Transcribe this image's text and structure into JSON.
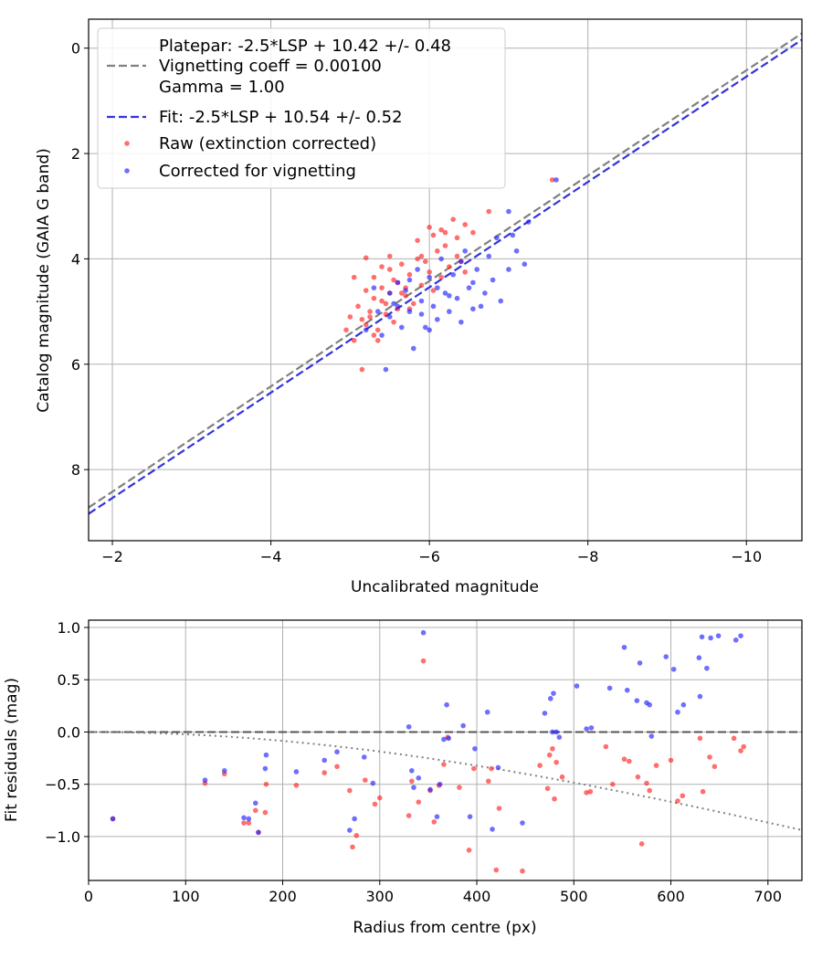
{
  "chart_data": [
    {
      "type": "scatter",
      "xlabel": "Uncalibrated magnitude",
      "ylabel": "Catalog magnitude (GAIA G band)",
      "xlim": [
        -1.7,
        -10.7
      ],
      "ylim": [
        9.35,
        -0.55
      ],
      "x_inverted": true,
      "y_inverted": true,
      "x_ticks": [
        -2,
        -4,
        -6,
        -8,
        -10
      ],
      "x_tick_labels": [
        "−2",
        "−4",
        "−6",
        "−8",
        "−10"
      ],
      "y_ticks": [
        0,
        2,
        4,
        6,
        8
      ],
      "y_tick_labels": [
        "0",
        "2",
        "4",
        "6",
        "8"
      ],
      "grid": true,
      "legend_position": "upper-left",
      "lines": [
        {
          "name": "Platepar: -2.5*LSP + 10.42 +/- 0.48",
          "slope": 1.0,
          "intercept": 10.42,
          "color": "#808080",
          "style": "dashed"
        },
        {
          "name": "Fit: -2.5*LSP + 10.54 +/- 0.52",
          "slope": 1.0,
          "intercept": 10.54,
          "color": "#3333dd",
          "style": "dashed"
        }
      ],
      "legend": [
        {
          "label": "Platepar: -2.5*LSP + 10.42 +/- 0.48",
          "kind": "text"
        },
        {
          "label": "Vignetting coeff = 0.00100",
          "kind": "dash",
          "color": "#808080"
        },
        {
          "label": "Gamma = 1.00",
          "kind": "text"
        },
        {
          "label": "Fit: -2.5*LSP + 10.54 +/- 0.52",
          "kind": "dash",
          "color": "#3333dd"
        },
        {
          "label": "Raw (extinction corrected)",
          "kind": "dot",
          "color": "#ff2222"
        },
        {
          "label": "Corrected for vignetting",
          "kind": "dot",
          "color": "#2222ff"
        }
      ],
      "series": [
        {
          "name": "Raw (extinction corrected)",
          "color": "#ff2222",
          "points": [
            [
              -4.95,
              5.35
            ],
            [
              -5.0,
              5.1
            ],
            [
              -5.05,
              5.55
            ],
            [
              -5.1,
              4.9
            ],
            [
              -5.15,
              5.15
            ],
            [
              -5.2,
              4.6
            ],
            [
              -5.2,
              5.25
            ],
            [
              -5.25,
              5.0
            ],
            [
              -5.3,
              4.35
            ],
            [
              -5.3,
              4.75
            ],
            [
              -5.35,
              5.35
            ],
            [
              -5.35,
              5.55
            ],
            [
              -5.4,
              4.55
            ],
            [
              -5.45,
              4.85
            ],
            [
              -5.45,
              5.05
            ],
            [
              -5.5,
              4.2
            ],
            [
              -5.5,
              4.65
            ],
            [
              -5.55,
              5.2
            ],
            [
              -5.6,
              4.45
            ],
            [
              -5.6,
              4.95
            ],
            [
              -5.65,
              4.1
            ],
            [
              -5.7,
              4.7
            ],
            [
              -5.75,
              4.3
            ],
            [
              -5.8,
              4.85
            ],
            [
              -5.85,
              3.65
            ],
            [
              -5.9,
              4.5
            ],
            [
              -5.95,
              4.05
            ],
            [
              -6.0,
              3.4
            ],
            [
              -6.05,
              4.6
            ],
            [
              -6.1,
              3.85
            ],
            [
              -6.15,
              4.35
            ],
            [
              -6.2,
              3.5
            ],
            [
              -6.25,
              4.15
            ],
            [
              -6.3,
              3.25
            ],
            [
              -6.35,
              3.6
            ],
            [
              -6.4,
              4.05
            ],
            [
              -6.45,
              3.35
            ],
            [
              -6.55,
              3.5
            ],
            [
              -6.75,
              3.1
            ],
            [
              -5.2,
              3.98
            ],
            [
              -5.4,
              4.8
            ],
            [
              -5.55,
              4.4
            ],
            [
              -5.7,
              4.55
            ],
            [
              -5.9,
              3.95
            ],
            [
              -6.0,
              4.25
            ],
            [
              -6.2,
              3.75
            ],
            [
              -6.35,
              3.95
            ],
            [
              -6.45,
              4.25
            ],
            [
              -5.15,
              6.1
            ],
            [
              -5.3,
              5.45
            ],
            [
              -5.05,
              4.35
            ],
            [
              -5.5,
              3.95
            ],
            [
              -5.75,
              4.95
            ],
            [
              -6.05,
              3.55
            ],
            [
              -7.55,
              2.5
            ],
            [
              -5.65,
              4.65
            ],
            [
              -5.25,
              5.1
            ],
            [
              -5.85,
              4.0
            ],
            [
              -6.15,
              3.45
            ],
            [
              -5.4,
              4.15
            ]
          ]
        },
        {
          "name": "Corrected for vignetting",
          "color": "#2222ff",
          "points": [
            [
              -5.2,
              5.35
            ],
            [
              -5.3,
              4.55
            ],
            [
              -5.4,
              5.45
            ],
            [
              -5.45,
              6.1
            ],
            [
              -5.5,
              5.1
            ],
            [
              -5.55,
              4.85
            ],
            [
              -5.6,
              4.45
            ],
            [
              -5.65,
              5.3
            ],
            [
              -5.7,
              4.6
            ],
            [
              -5.75,
              5.0
            ],
            [
              -5.8,
              5.7
            ],
            [
              -5.85,
              4.2
            ],
            [
              -5.9,
              4.8
            ],
            [
              -5.95,
              5.3
            ],
            [
              -6.0,
              4.35
            ],
            [
              -6.05,
              4.9
            ],
            [
              -6.1,
              5.15
            ],
            [
              -6.15,
              4.0
            ],
            [
              -6.2,
              4.65
            ],
            [
              -6.25,
              5.0
            ],
            [
              -6.3,
              4.3
            ],
            [
              -6.35,
              4.75
            ],
            [
              -6.4,
              5.2
            ],
            [
              -6.45,
              3.85
            ],
            [
              -6.5,
              4.55
            ],
            [
              -6.55,
              4.95
            ],
            [
              -6.6,
              4.2
            ],
            [
              -6.7,
              4.65
            ],
            [
              -6.75,
              3.95
            ],
            [
              -6.8,
              4.4
            ],
            [
              -6.85,
              3.6
            ],
            [
              -6.9,
              4.8
            ],
            [
              -7.0,
              4.2
            ],
            [
              -7.05,
              3.55
            ],
            [
              -7.1,
              3.85
            ],
            [
              -7.2,
              4.1
            ],
            [
              -7.25,
              3.3
            ],
            [
              -7.0,
              3.1
            ],
            [
              -7.6,
              2.5
            ],
            [
              -5.6,
              4.9
            ],
            [
              -5.9,
              5.05
            ],
            [
              -6.0,
              5.35
            ],
            [
              -6.1,
              4.55
            ],
            [
              -6.25,
              4.7
            ],
            [
              -5.75,
              4.4
            ],
            [
              -6.4,
              4.05
            ],
            [
              -5.35,
              5.0
            ],
            [
              -6.55,
              4.45
            ],
            [
              -6.65,
              4.9
            ],
            [
              -5.5,
              4.65
            ]
          ]
        }
      ]
    },
    {
      "type": "scatter",
      "xlabel": "Radius from centre (px)",
      "ylabel": "Fit residuals (mag)",
      "xlim": [
        0,
        735
      ],
      "ylim": [
        -1.42,
        1.07
      ],
      "x_ticks": [
        0,
        100,
        200,
        300,
        400,
        500,
        600,
        700
      ],
      "x_tick_labels": [
        "0",
        "100",
        "200",
        "300",
        "400",
        "500",
        "600",
        "700"
      ],
      "y_ticks": [
        1.0,
        0.5,
        0.0,
        -0.5,
        -1.0
      ],
      "y_tick_labels": [
        "1.0",
        "0.5",
        "0.0",
        "−0.5",
        "−1.0"
      ],
      "grid": true,
      "zero_line": {
        "y": 0,
        "color": "#555555",
        "style": "dashed"
      },
      "vignetting_curve": {
        "coeff": 0.001,
        "color": "#808080",
        "style": "dotted"
      },
      "series": [
        {
          "name": "Raw (extinction corrected)",
          "color": "#ff2222",
          "points": [
            [
              25,
              -0.83
            ],
            [
              120,
              -0.49
            ],
            [
              140,
              -0.4
            ],
            [
              160,
              -0.87
            ],
            [
              165,
              -0.87
            ],
            [
              172,
              -0.75
            ],
            [
              175,
              -0.96
            ],
            [
              182,
              -0.77
            ],
            [
              183,
              -0.5
            ],
            [
              214,
              -0.51
            ],
            [
              243,
              -0.39
            ],
            [
              256,
              -0.33
            ],
            [
              269,
              -0.56
            ],
            [
              272,
              -1.1
            ],
            [
              276,
              -0.99
            ],
            [
              285,
              -0.46
            ],
            [
              295,
              -0.69
            ],
            [
              300,
              -0.63
            ],
            [
              330,
              -0.8
            ],
            [
              333,
              -0.47
            ],
            [
              340,
              -0.67
            ],
            [
              345,
              0.68
            ],
            [
              352,
              -0.56
            ],
            [
              356,
              -0.86
            ],
            [
              361,
              -0.51
            ],
            [
              366,
              -0.31
            ],
            [
              370,
              -0.05
            ],
            [
              382,
              -0.53
            ],
            [
              392,
              -1.13
            ],
            [
              397,
              -0.35
            ],
            [
              412,
              -0.47
            ],
            [
              415,
              -0.35
            ],
            [
              420,
              -1.32
            ],
            [
              423,
              -0.73
            ],
            [
              447,
              -1.33
            ],
            [
              465,
              -0.32
            ],
            [
              473,
              -0.54
            ],
            [
              475,
              -0.22
            ],
            [
              478,
              -0.16
            ],
            [
              480,
              -0.64
            ],
            [
              482,
              -0.29
            ],
            [
              488,
              -0.43
            ],
            [
              513,
              -0.58
            ],
            [
              517,
              -0.57
            ],
            [
              533,
              -0.14
            ],
            [
              540,
              -0.5
            ],
            [
              552,
              -0.26
            ],
            [
              557,
              -0.28
            ],
            [
              566,
              -0.43
            ],
            [
              570,
              -1.07
            ],
            [
              575,
              -0.49
            ],
            [
              578,
              -0.56
            ],
            [
              585,
              -0.32
            ],
            [
              600,
              -0.27
            ],
            [
              607,
              -0.66
            ],
            [
              612,
              -0.61
            ],
            [
              630,
              -0.06
            ],
            [
              633,
              -0.57
            ],
            [
              640,
              -0.24
            ],
            [
              645,
              -0.33
            ],
            [
              665,
              -0.06
            ],
            [
              672,
              -0.18
            ],
            [
              675,
              -0.14
            ]
          ]
        },
        {
          "name": "Corrected for vignetting",
          "color": "#2222ff",
          "points": [
            [
              25,
              -0.83
            ],
            [
              120,
              -0.46
            ],
            [
              140,
              -0.37
            ],
            [
              160,
              -0.82
            ],
            [
              165,
              -0.83
            ],
            [
              172,
              -0.68
            ],
            [
              175,
              -0.96
            ],
            [
              182,
              -0.35
            ],
            [
              183,
              -0.22
            ],
            [
              214,
              -0.38
            ],
            [
              243,
              -0.27
            ],
            [
              256,
              -0.19
            ],
            [
              269,
              -0.94
            ],
            [
              274,
              -0.83
            ],
            [
              284,
              -0.24
            ],
            [
              293,
              -0.49
            ],
            [
              330,
              0.05
            ],
            [
              333,
              -0.37
            ],
            [
              335,
              -0.53
            ],
            [
              340,
              -0.44
            ],
            [
              345,
              0.95
            ],
            [
              352,
              -0.55
            ],
            [
              359,
              -0.81
            ],
            [
              362,
              -0.5
            ],
            [
              366,
              -0.07
            ],
            [
              369,
              0.26
            ],
            [
              371,
              -0.06
            ],
            [
              386,
              0.06
            ],
            [
              393,
              -0.81
            ],
            [
              398,
              -0.16
            ],
            [
              411,
              0.19
            ],
            [
              416,
              -0.93
            ],
            [
              422,
              -0.34
            ],
            [
              447,
              -0.87
            ],
            [
              470,
              0.18
            ],
            [
              476,
              0.32
            ],
            [
              479,
              0.37
            ],
            [
              478,
              0.0
            ],
            [
              482,
              0.0
            ],
            [
              485,
              -0.05
            ],
            [
              503,
              0.44
            ],
            [
              513,
              0.03
            ],
            [
              518,
              0.04
            ],
            [
              537,
              0.42
            ],
            [
              552,
              0.81
            ],
            [
              555,
              0.4
            ],
            [
              565,
              0.3
            ],
            [
              568,
              0.66
            ],
            [
              575,
              0.28
            ],
            [
              578,
              0.26
            ],
            [
              580,
              -0.04
            ],
            [
              595,
              0.72
            ],
            [
              603,
              0.6
            ],
            [
              607,
              0.19
            ],
            [
              613,
              0.26
            ],
            [
              629,
              0.71
            ],
            [
              630,
              0.34
            ],
            [
              632,
              0.91
            ],
            [
              641,
              0.9
            ],
            [
              649,
              0.92
            ],
            [
              667,
              0.88
            ],
            [
              672,
              0.92
            ],
            [
              637,
              0.61
            ]
          ]
        }
      ]
    }
  ]
}
